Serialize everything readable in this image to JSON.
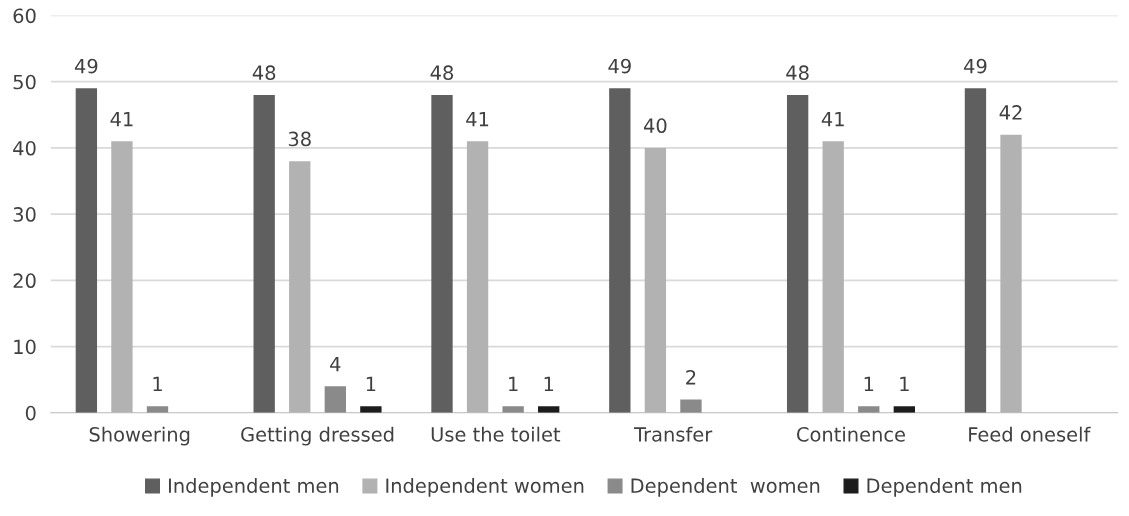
{
  "chart_data": {
    "type": "bar",
    "categories": [
      "Showering",
      "Getting dressed",
      "Use the toilet",
      "Transfer",
      "Continence",
      "Feed oneself"
    ],
    "series": [
      {
        "name": "Independent men",
        "color": "#5f5f5f",
        "values": [
          49,
          48,
          48,
          49,
          48,
          49
        ]
      },
      {
        "name": "Independent women",
        "color": "#b2b2b2",
        "values": [
          41,
          38,
          41,
          40,
          41,
          42
        ]
      },
      {
        "name": "Dependent  women",
        "color": "#8a8a8a",
        "values": [
          1,
          4,
          1,
          2,
          1,
          null
        ]
      },
      {
        "name": "Dependent men",
        "color": "#1c1c1c",
        "values": [
          null,
          1,
          1,
          null,
          1,
          null
        ]
      }
    ],
    "ylim": [
      0,
      60
    ],
    "yticks": [
      0,
      10,
      20,
      30,
      40,
      50,
      60
    ],
    "grid": "y",
    "legend": "bottom",
    "data_labels": true
  }
}
